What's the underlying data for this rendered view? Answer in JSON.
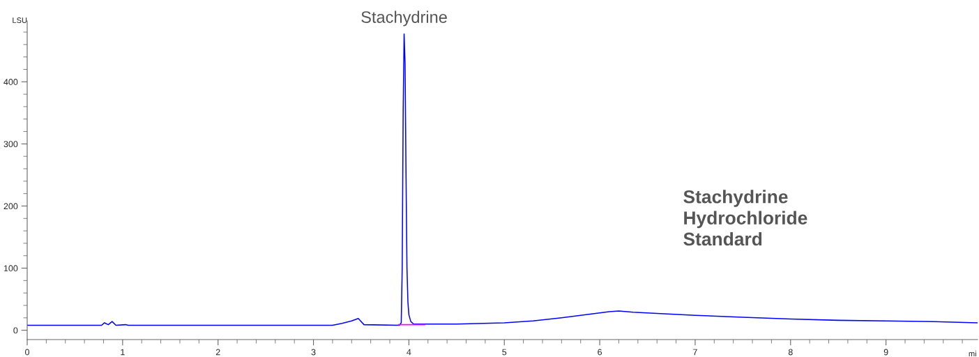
{
  "chart_data": {
    "type": "line",
    "xlabel": "mi",
    "ylabel": "LSU",
    "x": [
      0,
      0.78,
      0.81,
      0.85,
      0.89,
      0.93,
      1.03,
      1.06,
      3.2,
      3.3,
      3.4,
      3.47,
      3.5,
      3.53,
      3.9,
      3.92,
      3.93,
      3.94,
      3.95,
      3.96,
      3.97,
      3.98,
      3.99,
      4.0,
      4.02,
      4.05,
      4.5,
      5.0,
      5.3,
      5.6,
      5.9,
      6.1,
      6.2,
      6.35,
      6.6,
      7.0,
      7.5,
      8.0,
      8.5,
      9.0,
      9.5,
      9.96
    ],
    "series": [
      {
        "color": "#0000ff",
        "values": [
          8,
          8,
          12,
          9,
          14,
          8,
          9,
          8,
          8,
          11,
          15,
          19,
          14,
          9,
          8,
          12,
          100,
          350,
          477,
          430,
          250,
          100,
          45,
          25,
          14,
          10,
          10,
          12,
          15,
          20,
          26,
          30,
          31,
          29,
          27,
          24,
          21,
          18,
          16,
          15,
          14,
          12
        ]
      },
      {
        "color": "#ff00ff",
        "x": [
          3.89,
          4.17
        ],
        "values": [
          9,
          9
        ]
      }
    ],
    "xlim": [
      0,
      9.96
    ],
    "ylim": [
      -15,
      498
    ],
    "xticks": [
      0,
      1,
      2,
      3,
      4,
      5,
      6,
      7,
      8,
      9
    ],
    "yticks": [
      0,
      100,
      200,
      300,
      400
    ],
    "grid": false,
    "legend": false,
    "line_style": "solid",
    "marker": "none",
    "annotations": [
      {
        "text": "Stachydrine",
        "x": 3.95,
        "y": 477
      },
      "Stachydrine\nHydrochloride\nStandard"
    ]
  }
}
